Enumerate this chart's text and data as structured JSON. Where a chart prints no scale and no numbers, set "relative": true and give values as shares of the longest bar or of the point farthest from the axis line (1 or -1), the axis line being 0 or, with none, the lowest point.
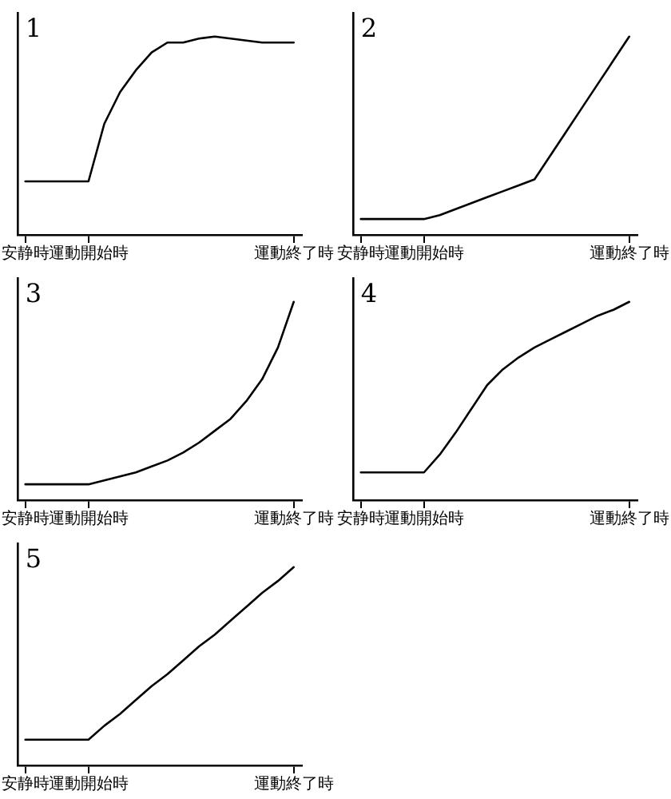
{
  "chart_data": [
    {
      "type": "line",
      "title": "1",
      "relative": true,
      "marker": "none",
      "categories": [
        "安静時",
        null,
        null,
        null,
        "運動開始時",
        null,
        null,
        null,
        null,
        null,
        null,
        null,
        null,
        null,
        null,
        null,
        null,
        "運動終了時"
      ],
      "values": [
        0.27,
        0.27,
        0.27,
        0.27,
        0.27,
        0.56,
        0.72,
        0.83,
        0.92,
        0.97,
        0.97,
        0.99,
        1,
        0.99,
        0.98,
        0.97,
        0.97,
        0.97
      ],
      "color": "#000000"
    },
    {
      "type": "line",
      "title": "2",
      "relative": true,
      "marker": "none",
      "categories": [
        "安静時",
        null,
        null,
        null,
        "運動開始時",
        null,
        null,
        null,
        null,
        null,
        null,
        null,
        null,
        null,
        null,
        null,
        null,
        "運動終了時"
      ],
      "values": [
        0.08,
        0.08,
        0.08,
        0.08,
        0.08,
        0.1,
        0.13,
        0.16,
        0.19,
        0.22,
        0.25,
        0.28,
        0.4,
        0.52,
        0.64,
        0.76,
        0.88,
        1
      ],
      "color": "#000000"
    },
    {
      "type": "line",
      "title": "3",
      "relative": true,
      "marker": "none",
      "categories": [
        "安静時",
        null,
        null,
        null,
        "運動開始時",
        null,
        null,
        null,
        null,
        null,
        null,
        null,
        null,
        null,
        null,
        null,
        null,
        "運動終了時"
      ],
      "values": [
        0.08,
        0.08,
        0.08,
        0.08,
        0.08,
        0.1,
        0.12,
        0.14,
        0.17,
        0.2,
        0.24,
        0.29,
        0.35,
        0.41,
        0.5,
        0.61,
        0.77,
        1
      ],
      "color": "#000000"
    },
    {
      "type": "line",
      "title": "4",
      "relative": true,
      "marker": "none",
      "categories": [
        "安静時",
        null,
        null,
        null,
        "運動開始時",
        null,
        null,
        null,
        null,
        null,
        null,
        null,
        null,
        null,
        null,
        null,
        null,
        "運動終了時"
      ],
      "values": [
        0.14,
        0.14,
        0.14,
        0.14,
        0.14,
        0.23,
        0.34,
        0.46,
        0.58,
        0.66,
        0.72,
        0.77,
        0.81,
        0.85,
        0.89,
        0.93,
        0.96,
        1
      ],
      "color": "#000000"
    },
    {
      "type": "line",
      "title": "5",
      "relative": true,
      "marker": "none",
      "categories": [
        "安静時",
        null,
        null,
        null,
        "運動開始時",
        null,
        null,
        null,
        null,
        null,
        null,
        null,
        null,
        null,
        null,
        null,
        null,
        "運動終了時"
      ],
      "values": [
        0.13,
        0.13,
        0.13,
        0.13,
        0.13,
        0.2,
        0.26,
        0.33,
        0.4,
        0.46,
        0.53,
        0.6,
        0.66,
        0.73,
        0.8,
        0.87,
        0.93,
        1
      ],
      "color": "#000000"
    }
  ]
}
